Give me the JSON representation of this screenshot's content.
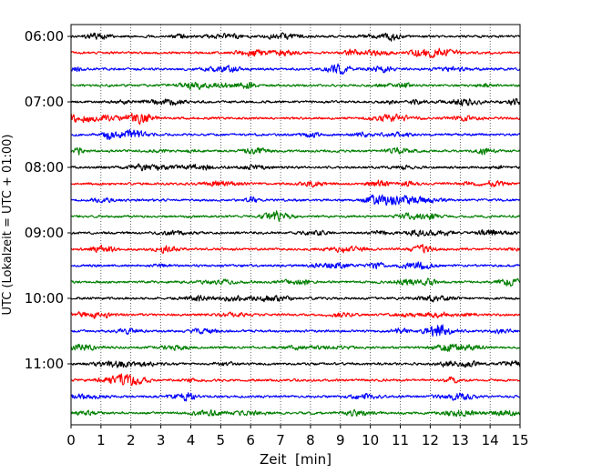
{
  "chart_data": {
    "type": "line",
    "title": "",
    "xlabel": "Zeit  [min]",
    "ylabel": "UTC (Lokalzeit = UTC + 01:00)",
    "xlim": [
      0,
      15
    ],
    "x_ticks": [
      0,
      1,
      2,
      3,
      4,
      5,
      6,
      7,
      8,
      9,
      10,
      11,
      12,
      13,
      14,
      15
    ],
    "y_tick_labels": [
      "06:00",
      "07:00",
      "08:00",
      "09:00",
      "10:00",
      "11:00"
    ],
    "trace_interval_minutes": 15,
    "first_trace_utc": "06:00",
    "last_trace_utc": "11:45",
    "trace_count": 24,
    "color_cycle": [
      "#000000",
      "#ff0000",
      "#0000ff",
      "#007f00"
    ],
    "vertical_grid": true,
    "grid_style": "dotted",
    "series": [
      {
        "start_utc": "06:00",
        "color": "#000000"
      },
      {
        "start_utc": "06:15",
        "color": "#ff0000"
      },
      {
        "start_utc": "06:30",
        "color": "#0000ff"
      },
      {
        "start_utc": "06:45",
        "color": "#007f00"
      },
      {
        "start_utc": "07:00",
        "color": "#000000"
      },
      {
        "start_utc": "07:15",
        "color": "#ff0000"
      },
      {
        "start_utc": "07:30",
        "color": "#0000ff"
      },
      {
        "start_utc": "07:45",
        "color": "#007f00"
      },
      {
        "start_utc": "08:00",
        "color": "#000000"
      },
      {
        "start_utc": "08:15",
        "color": "#ff0000"
      },
      {
        "start_utc": "08:30",
        "color": "#0000ff"
      },
      {
        "start_utc": "08:45",
        "color": "#007f00"
      },
      {
        "start_utc": "09:00",
        "color": "#000000"
      },
      {
        "start_utc": "09:15",
        "color": "#ff0000"
      },
      {
        "start_utc": "09:30",
        "color": "#0000ff"
      },
      {
        "start_utc": "09:45",
        "color": "#007f00"
      },
      {
        "start_utc": "10:00",
        "color": "#000000"
      },
      {
        "start_utc": "10:15",
        "color": "#ff0000"
      },
      {
        "start_utc": "10:30",
        "color": "#0000ff"
      },
      {
        "start_utc": "10:45",
        "color": "#007f00"
      },
      {
        "start_utc": "11:00",
        "color": "#000000"
      },
      {
        "start_utc": "11:15",
        "color": "#ff0000"
      },
      {
        "start_utc": "11:30",
        "color": "#0000ff"
      },
      {
        "start_utc": "11:45",
        "color": "#007f00"
      }
    ]
  }
}
